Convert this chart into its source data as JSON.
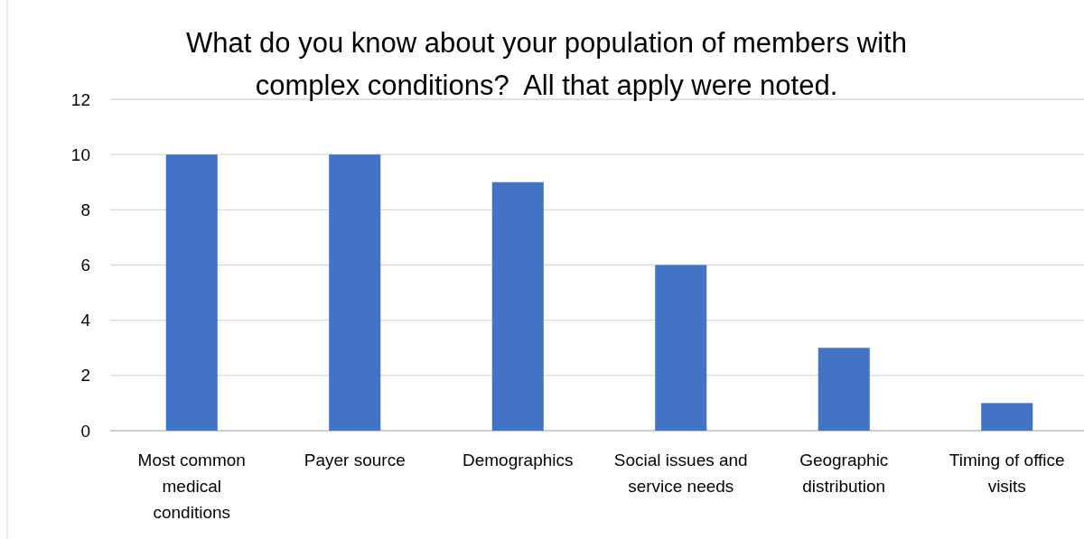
{
  "chart_data": {
    "type": "bar",
    "title": "What do you know about your population of members with complex conditions?  All that apply were noted.",
    "categories": [
      "Most common medical conditions",
      "Payer source",
      "Demographics",
      "Social issues and service needs",
      "Geographic distribution",
      "Timing of office visits"
    ],
    "values": [
      10,
      10,
      9,
      6,
      3,
      1
    ],
    "color": "#4472c4",
    "ylim": [
      0,
      12
    ],
    "yticks": [
      0,
      2,
      4,
      6,
      8,
      10,
      12
    ],
    "grid": "y"
  }
}
